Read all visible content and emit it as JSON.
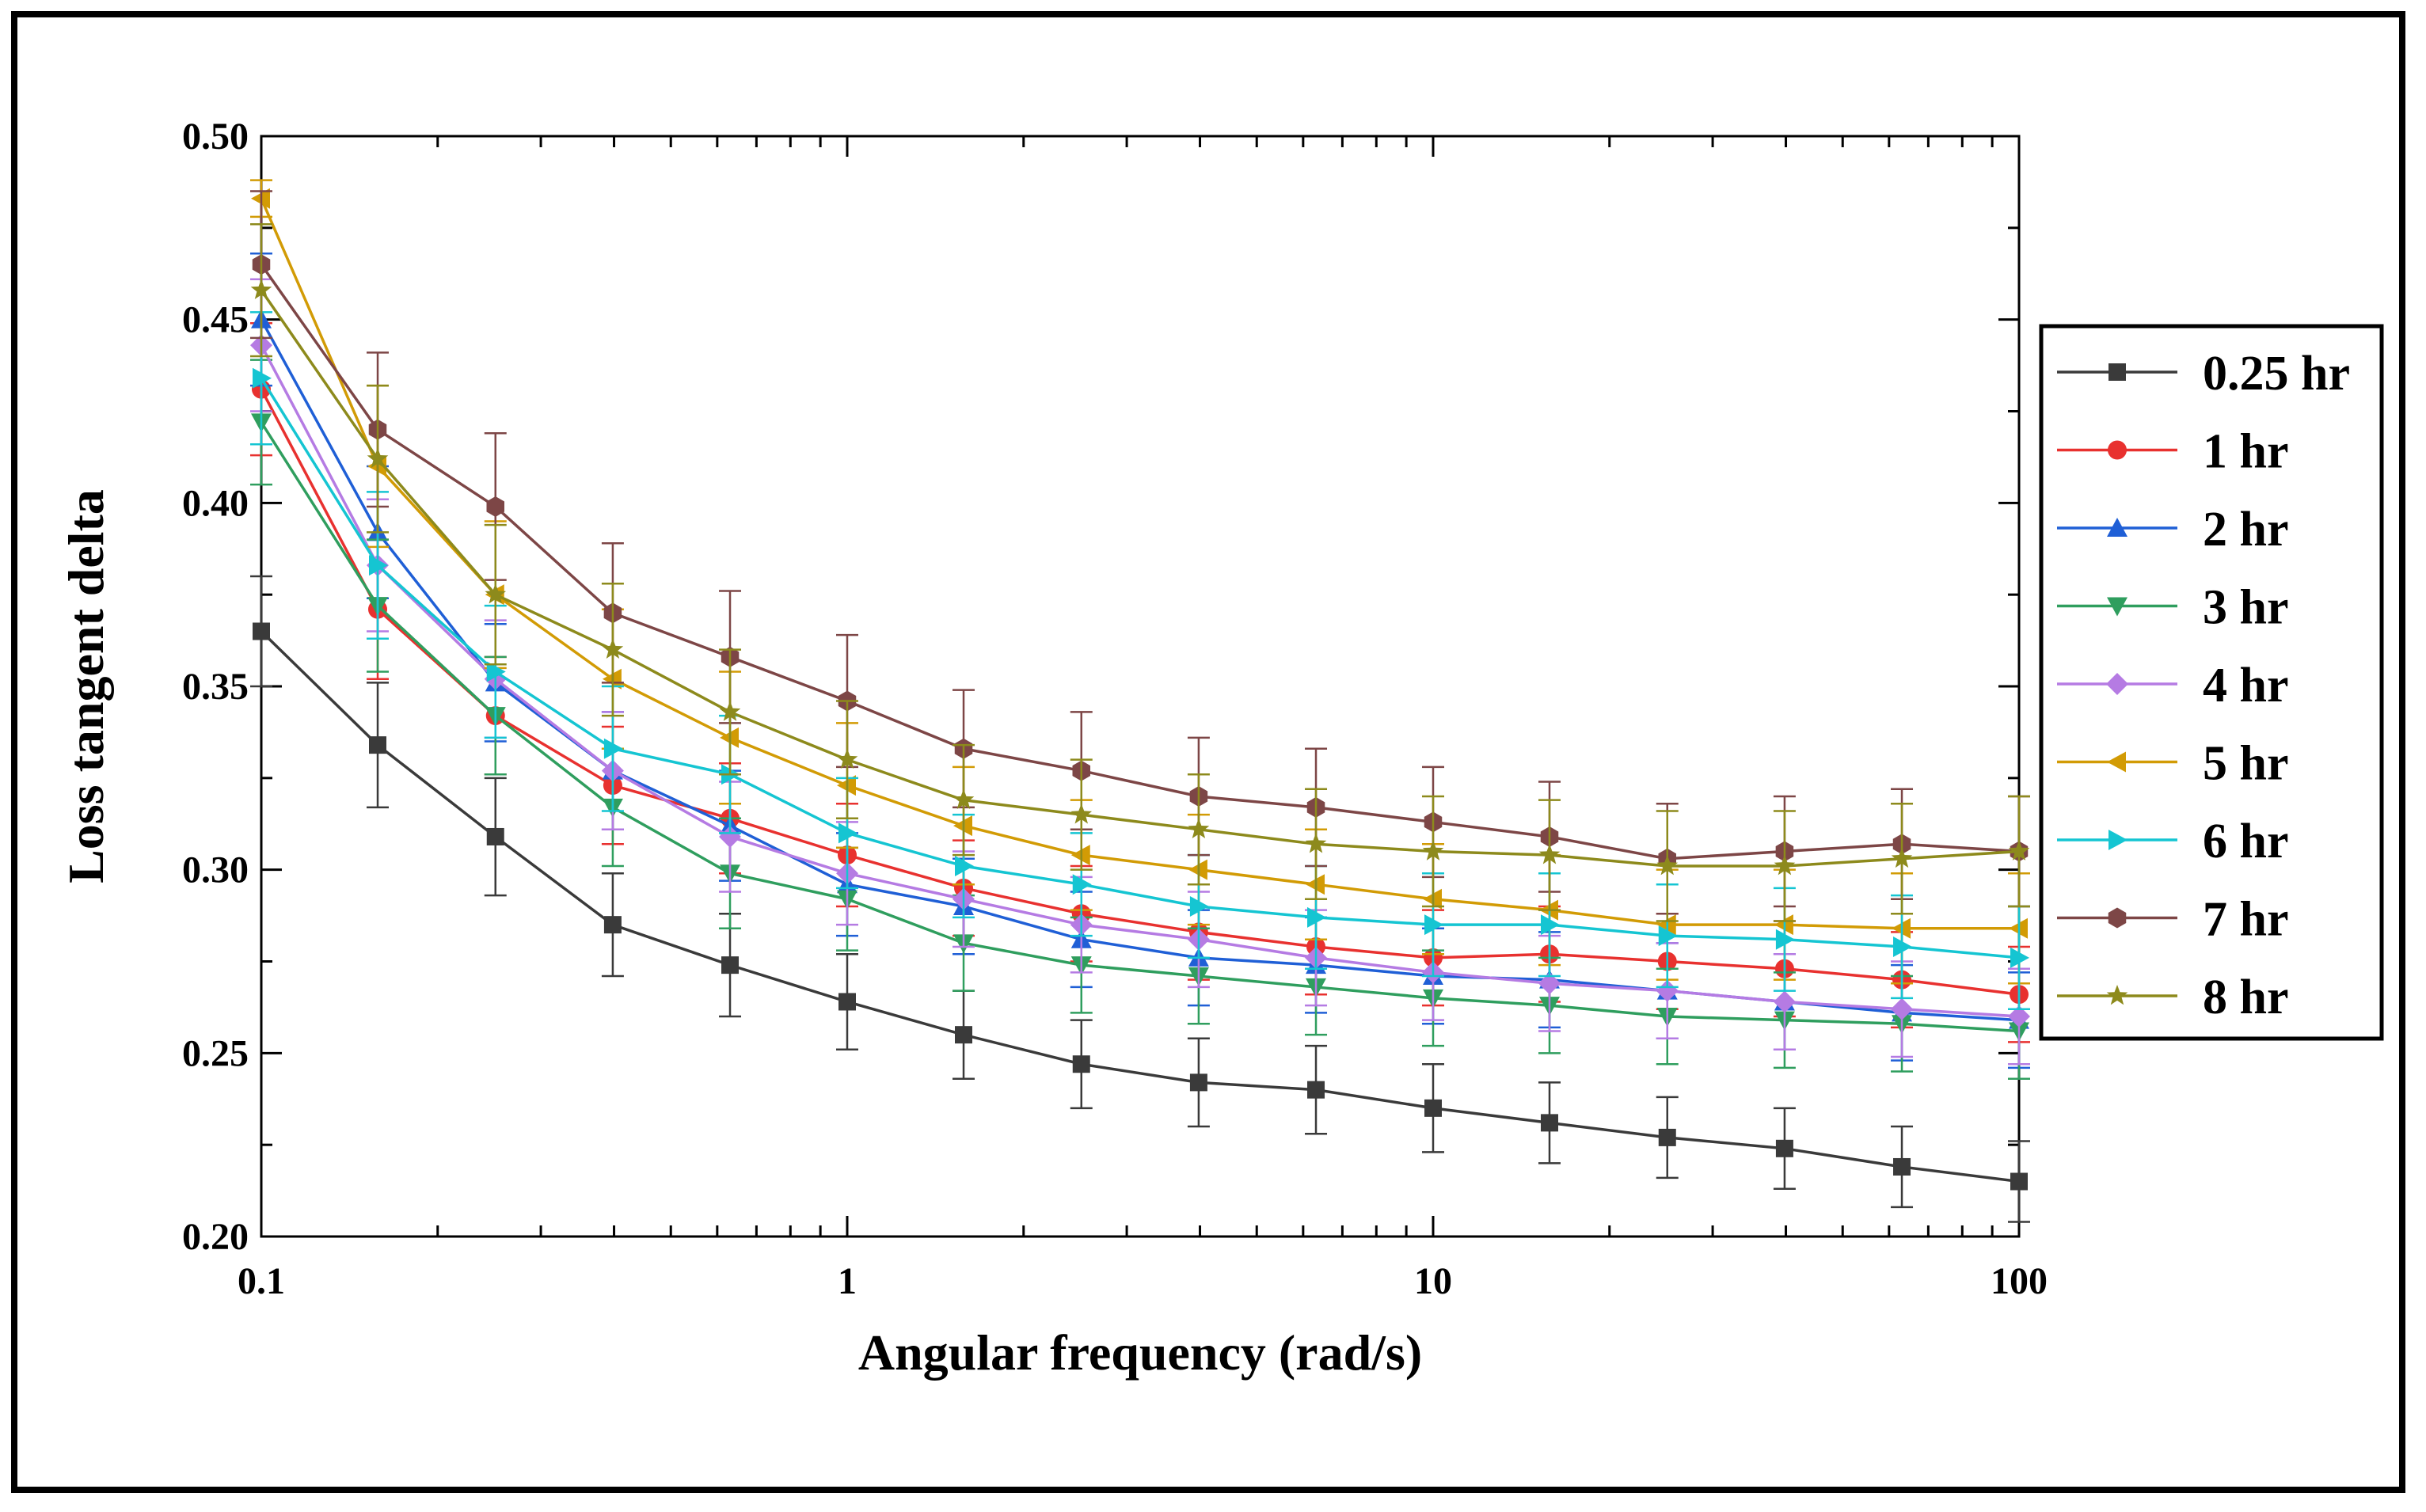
{
  "chart_data": {
    "type": "line",
    "xscale": "log",
    "xlabel": "Angular frequency (rad/s)",
    "ylabel": "Loss tangent delta",
    "xlim": [
      0.1,
      100
    ],
    "ylim": [
      0.2,
      0.5
    ],
    "x_ticks": [
      0.1,
      1,
      10,
      100
    ],
    "x_tick_labels": [
      "0.1",
      "1",
      "10",
      "100"
    ],
    "y_ticks": [
      0.2,
      0.25,
      0.3,
      0.35,
      0.4,
      0.45,
      0.5
    ],
    "y_tick_labels": [
      "0.20",
      "0.25",
      "0.30",
      "0.35",
      "0.40",
      "0.45",
      "0.50"
    ],
    "legend_position": "right",
    "x": [
      0.1,
      0.158,
      0.251,
      0.398,
      0.631,
      1,
      1.58,
      2.51,
      3.98,
      6.31,
      10,
      15.8,
      25.1,
      39.8,
      63.1,
      100
    ],
    "series": [
      {
        "name": "0.25 hr",
        "color": "#3a3a3a",
        "marker": "square",
        "values": [
          0.365,
          0.334,
          0.309,
          0.285,
          0.274,
          0.264,
          0.255,
          0.247,
          0.242,
          0.24,
          0.235,
          0.231,
          0.227,
          0.224,
          0.219,
          0.215
        ],
        "errors": [
          0.015,
          0.017,
          0.016,
          0.014,
          0.014,
          0.013,
          0.012,
          0.012,
          0.012,
          0.012,
          0.012,
          0.011,
          0.011,
          0.011,
          0.011,
          0.011
        ]
      },
      {
        "name": "1 hr",
        "color": "#e8312f",
        "marker": "circle",
        "values": [
          0.431,
          0.371,
          0.342,
          0.323,
          0.314,
          0.304,
          0.295,
          0.288,
          0.283,
          0.279,
          0.276,
          0.277,
          0.275,
          0.273,
          0.27,
          0.266
        ],
        "errors": [
          0.018,
          0.019,
          0.016,
          0.016,
          0.015,
          0.014,
          0.013,
          0.013,
          0.013,
          0.013,
          0.013,
          0.013,
          0.013,
          0.013,
          0.013,
          0.013
        ]
      },
      {
        "name": "2 hr",
        "color": "#1f5fd6",
        "marker": "triangle-up",
        "values": [
          0.45,
          0.392,
          0.351,
          0.327,
          0.312,
          0.296,
          0.29,
          0.281,
          0.276,
          0.274,
          0.271,
          0.27,
          0.267,
          0.264,
          0.261,
          0.259
        ],
        "errors": [
          0.018,
          0.018,
          0.016,
          0.016,
          0.015,
          0.014,
          0.013,
          0.013,
          0.013,
          0.013,
          0.013,
          0.013,
          0.013,
          0.013,
          0.013,
          0.013
        ]
      },
      {
        "name": "3 hr",
        "color": "#2f9e5e",
        "marker": "triangle-down",
        "values": [
          0.422,
          0.372,
          0.342,
          0.317,
          0.299,
          0.292,
          0.28,
          0.274,
          0.271,
          0.268,
          0.265,
          0.263,
          0.26,
          0.259,
          0.258,
          0.256
        ],
        "errors": [
          0.017,
          0.018,
          0.016,
          0.016,
          0.015,
          0.014,
          0.013,
          0.013,
          0.013,
          0.013,
          0.013,
          0.013,
          0.013,
          0.013,
          0.013,
          0.013
        ]
      },
      {
        "name": "4 hr",
        "color": "#b57be3",
        "marker": "diamond",
        "values": [
          0.443,
          0.383,
          0.352,
          0.327,
          0.309,
          0.299,
          0.292,
          0.285,
          0.281,
          0.276,
          0.272,
          0.269,
          0.267,
          0.264,
          0.262,
          0.26
        ],
        "errors": [
          0.018,
          0.018,
          0.016,
          0.016,
          0.015,
          0.014,
          0.013,
          0.013,
          0.013,
          0.013,
          0.013,
          0.013,
          0.013,
          0.013,
          0.013,
          0.013
        ]
      },
      {
        "name": "5 hr",
        "color": "#d29b05",
        "marker": "triangle-left",
        "values": [
          0.483,
          0.41,
          0.375,
          0.352,
          0.336,
          0.323,
          0.312,
          0.304,
          0.3,
          0.296,
          0.292,
          0.289,
          0.285,
          0.285,
          0.284,
          0.284
        ],
        "errors": [
          0.005,
          0.022,
          0.02,
          0.019,
          0.018,
          0.017,
          0.016,
          0.015,
          0.015,
          0.015,
          0.015,
          0.015,
          0.015,
          0.015,
          0.015,
          0.015
        ]
      },
      {
        "name": "6 hr",
        "color": "#15c5d2",
        "marker": "triangle-right",
        "values": [
          0.434,
          0.383,
          0.354,
          0.333,
          0.326,
          0.31,
          0.301,
          0.296,
          0.29,
          0.287,
          0.285,
          0.285,
          0.282,
          0.281,
          0.279,
          0.276
        ],
        "errors": [
          0.018,
          0.02,
          0.018,
          0.017,
          0.016,
          0.015,
          0.014,
          0.014,
          0.014,
          0.014,
          0.014,
          0.014,
          0.014,
          0.014,
          0.014,
          0.014
        ]
      },
      {
        "name": "7 hr",
        "color": "#7d4646",
        "marker": "hexagon",
        "values": [
          0.465,
          0.42,
          0.399,
          0.37,
          0.358,
          0.346,
          0.333,
          0.327,
          0.32,
          0.317,
          0.313,
          0.309,
          0.303,
          0.305,
          0.307,
          0.305
        ],
        "errors": [
          0.02,
          0.021,
          0.02,
          0.019,
          0.018,
          0.018,
          0.016,
          0.016,
          0.016,
          0.016,
          0.015,
          0.015,
          0.015,
          0.015,
          0.015,
          0.015
        ]
      },
      {
        "name": "8 hr",
        "color": "#8d8a1c",
        "marker": "star",
        "values": [
          0.458,
          0.412,
          0.375,
          0.36,
          0.343,
          0.33,
          0.319,
          0.315,
          0.311,
          0.307,
          0.305,
          0.304,
          0.301,
          0.301,
          0.303,
          0.305
        ],
        "errors": [
          0.018,
          0.02,
          0.019,
          0.018,
          0.017,
          0.016,
          0.015,
          0.015,
          0.015,
          0.015,
          0.015,
          0.015,
          0.015,
          0.015,
          0.015,
          0.015
        ]
      }
    ]
  }
}
